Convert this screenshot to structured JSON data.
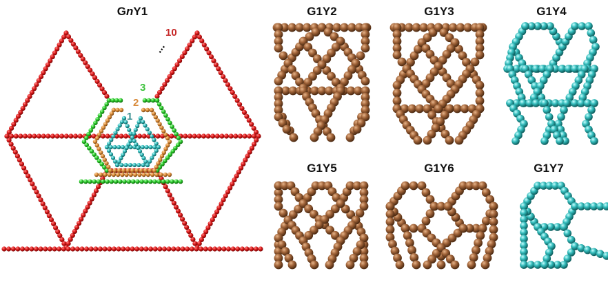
{
  "figure": {
    "main_panel": {
      "title_prefix": "G",
      "title_italic": "n",
      "title_suffix": "Y1",
      "generation_labels": [
        {
          "text": "1",
          "color": "#3a8f92"
        },
        {
          "text": "2",
          "color": "#d88a3a"
        },
        {
          "text": "3",
          "color": "#3cc23c"
        },
        {
          "text": "10",
          "color": "#c62828"
        }
      ],
      "ellipsis": "...",
      "structures": [
        {
          "generation": "1",
          "color": "#33b8b8"
        },
        {
          "generation": "2",
          "color": "#d98c3a"
        },
        {
          "generation": "3",
          "color": "#2ecc2e"
        },
        {
          "generation": "10",
          "color": "#d61f1f"
        }
      ]
    },
    "panels": [
      {
        "title": "G1Y2",
        "color": "#9a5c32"
      },
      {
        "title": "G1Y3",
        "color": "#9a5c32"
      },
      {
        "title": "G1Y4",
        "color": "#2fb4b4"
      },
      {
        "title": "G1Y5",
        "color": "#9a5c32"
      },
      {
        "title": "G1Y6",
        "color": "#9a5c32"
      },
      {
        "title": "G1Y7",
        "color": "#2fb4b4"
      }
    ]
  }
}
